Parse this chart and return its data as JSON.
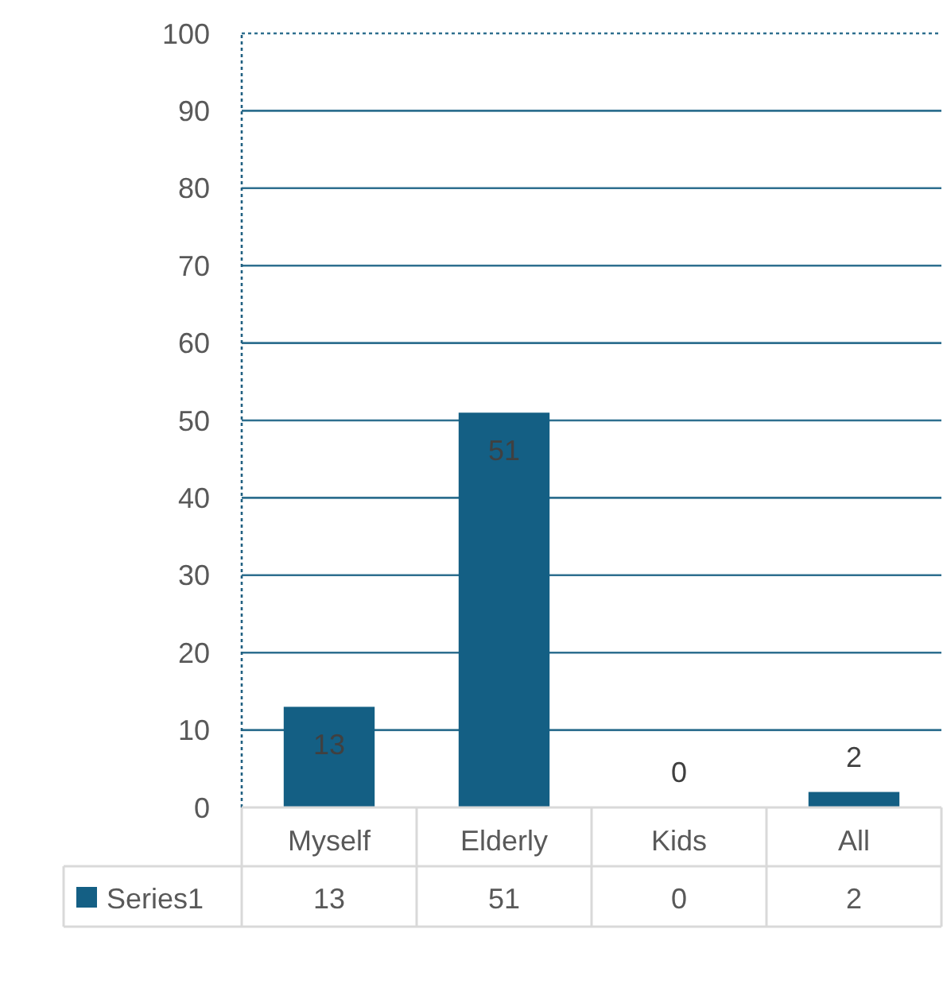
{
  "chart_data": {
    "type": "bar",
    "categories": [
      "Myself",
      "Elderly",
      "Kids",
      "All"
    ],
    "series": [
      {
        "name": "Series1",
        "color": "#145f84",
        "values": [
          13,
          51,
          0,
          2
        ],
        "value_labels": [
          "13",
          "51",
          "0",
          "2"
        ]
      }
    ],
    "ylim": [
      0,
      100
    ],
    "yticks": [
      0,
      10,
      20,
      30,
      40,
      50,
      60,
      70,
      80,
      90,
      100
    ],
    "grid": "y",
    "legend": "bottom",
    "annotations": [
      "13",
      "51",
      "0",
      "2"
    ]
  }
}
